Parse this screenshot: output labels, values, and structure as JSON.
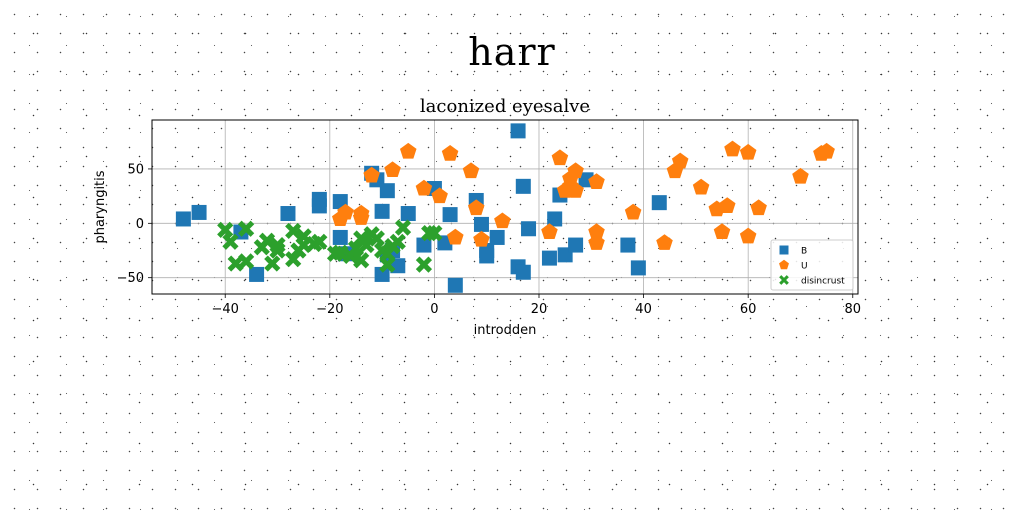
{
  "figure": {
    "suptitle": "harr"
  },
  "chart_data": {
    "type": "scatter",
    "title": "laconized eyesalve",
    "xlabel": "introdden",
    "ylabel": "pharyngitis",
    "xlim": [
      -54,
      81
    ],
    "ylim": [
      -65,
      95
    ],
    "xticks": [
      -40,
      -20,
      0,
      20,
      40,
      60,
      80
    ],
    "yticks": [
      -50,
      0,
      50
    ],
    "grid": true,
    "legend_position": "lower-right",
    "series": [
      {
        "name": "B",
        "marker": "square",
        "color": "#1f77b4",
        "points": [
          [
            -48,
            4
          ],
          [
            -45,
            10
          ],
          [
            -37,
            -8
          ],
          [
            -34,
            -47
          ],
          [
            -28,
            9
          ],
          [
            -22,
            22
          ],
          [
            -22,
            16
          ],
          [
            -18,
            20
          ],
          [
            -18,
            -13
          ],
          [
            -17,
            -28
          ],
          [
            -12,
            46
          ],
          [
            -11,
            40
          ],
          [
            -10,
            -47
          ],
          [
            -10,
            11
          ],
          [
            -9,
            30
          ],
          [
            -9,
            -29
          ],
          [
            -8,
            -25
          ],
          [
            -7,
            -39
          ],
          [
            -5,
            9
          ],
          [
            -2,
            -20
          ],
          [
            0,
            32
          ],
          [
            2,
            -18
          ],
          [
            3,
            8
          ],
          [
            4,
            -57
          ],
          [
            8,
            21
          ],
          [
            9,
            -1
          ],
          [
            10,
            -25
          ],
          [
            10,
            -30
          ],
          [
            12,
            -13
          ],
          [
            16,
            85
          ],
          [
            16,
            -40
          ],
          [
            17,
            -45
          ],
          [
            17,
            34
          ],
          [
            18,
            -5
          ],
          [
            22,
            -32
          ],
          [
            23,
            4
          ],
          [
            24,
            26
          ],
          [
            25,
            -29
          ],
          [
            27,
            -20
          ],
          [
            29,
            40
          ],
          [
            37,
            -20
          ],
          [
            39,
            -41
          ],
          [
            43,
            19
          ]
        ]
      },
      {
        "name": "U",
        "marker": "pentagon",
        "color": "#ff7f0e",
        "points": [
          [
            -18,
            4
          ],
          [
            -17,
            10
          ],
          [
            -14,
            5
          ],
          [
            -14,
            9
          ],
          [
            -12,
            44
          ],
          [
            -8,
            49
          ],
          [
            -5,
            66
          ],
          [
            -2,
            32
          ],
          [
            1,
            25
          ],
          [
            3,
            64
          ],
          [
            4,
            -13
          ],
          [
            7,
            48
          ],
          [
            8,
            14
          ],
          [
            9,
            -15
          ],
          [
            13,
            2
          ],
          [
            22,
            -8
          ],
          [
            24,
            60
          ],
          [
            25,
            30
          ],
          [
            26,
            34
          ],
          [
            27,
            30
          ],
          [
            26,
            41
          ],
          [
            27,
            48
          ],
          [
            31,
            38
          ],
          [
            31,
            -18
          ],
          [
            31,
            -8
          ],
          [
            38,
            10
          ],
          [
            44,
            -18
          ],
          [
            46,
            48
          ],
          [
            47,
            57
          ],
          [
            51,
            33
          ],
          [
            54,
            13
          ],
          [
            55,
            -8
          ],
          [
            56,
            16
          ],
          [
            57,
            68
          ],
          [
            60,
            65
          ],
          [
            60,
            -12
          ],
          [
            62,
            14
          ],
          [
            70,
            43
          ],
          [
            74,
            64
          ],
          [
            75,
            66
          ]
        ]
      },
      {
        "name": "disincrust",
        "marker": "x",
        "color": "#2ca02c",
        "points": [
          [
            -40,
            -6
          ],
          [
            -39,
            -17
          ],
          [
            -38,
            -37
          ],
          [
            -36,
            -35
          ],
          [
            -36,
            -5
          ],
          [
            -33,
            -22
          ],
          [
            -32,
            -16
          ],
          [
            -31,
            -37
          ],
          [
            -30,
            -20
          ],
          [
            -30,
            -25
          ],
          [
            -26,
            -25
          ],
          [
            -27,
            -33
          ],
          [
            -27,
            -7
          ],
          [
            -25,
            -20
          ],
          [
            -25,
            -12
          ],
          [
            -23,
            -19
          ],
          [
            -22,
            -17
          ],
          [
            -19,
            -28
          ],
          [
            -18,
            -27
          ],
          [
            -16,
            -30
          ],
          [
            -15,
            -23
          ],
          [
            -14,
            -34
          ],
          [
            -14,
            -14
          ],
          [
            -13,
            -20
          ],
          [
            -12,
            -10
          ],
          [
            -11,
            -14
          ],
          [
            -10,
            -25
          ],
          [
            -9,
            -28
          ],
          [
            -9,
            -38
          ],
          [
            -8,
            -21
          ],
          [
            -7,
            -17
          ],
          [
            -6,
            -4
          ],
          [
            -2,
            -38
          ],
          [
            -1,
            -9
          ],
          [
            0,
            -9
          ]
        ]
      }
    ]
  }
}
